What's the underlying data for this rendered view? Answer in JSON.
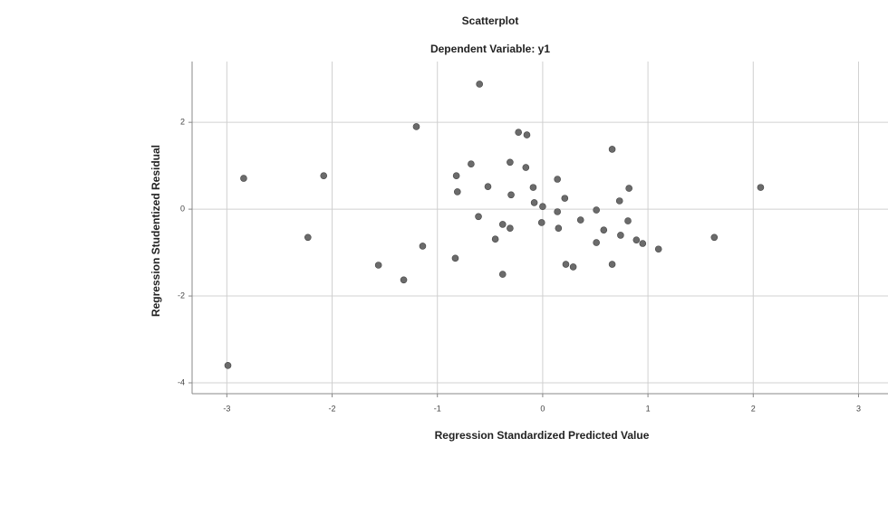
{
  "chart_data": {
    "type": "scatter",
    "title": "Scatterplot",
    "subtitle": "Dependent Variable: y1",
    "x_label": "Regression Standardized Predicted Value",
    "y_label": "Regression Studentized Residual",
    "color": "#6b6b6b",
    "grid": true,
    "xlim": [
      -3.33,
      3.28
    ],
    "ylim": [
      -4.25,
      3.4
    ],
    "xticks": [
      -3,
      -2,
      -1,
      0,
      1,
      2,
      3
    ],
    "yticks": [
      2,
      0,
      -2,
      -4
    ],
    "x": [
      -0.6,
      -1.2,
      -2.84,
      -2.08,
      -2.23,
      -1.56,
      -1.32,
      -1.14,
      -0.83,
      -0.82,
      -0.81,
      -0.68,
      -0.61,
      -0.52,
      -0.45,
      -0.38,
      -0.31,
      -0.38,
      -0.31,
      -0.3,
      -0.23,
      -0.15,
      -0.16,
      -0.09,
      -0.08,
      -0.01,
      0.0,
      0.14,
      0.14,
      0.15,
      0.21,
      0.22,
      0.29,
      0.36,
      0.51,
      0.51,
      0.58,
      0.66,
      0.66,
      0.73,
      0.74,
      0.81,
      0.82,
      0.89,
      0.95,
      1.1,
      1.63,
      2.07,
      -2.99
    ],
    "values": [
      2.88,
      1.9,
      0.71,
      0.77,
      -0.65,
      -1.29,
      -1.63,
      -0.85,
      -1.13,
      0.77,
      0.4,
      1.04,
      -0.17,
      0.52,
      -0.69,
      -0.35,
      -0.44,
      -1.5,
      1.08,
      0.33,
      1.77,
      1.71,
      0.96,
      0.5,
      0.15,
      -0.31,
      0.06,
      0.69,
      -0.06,
      -0.44,
      0.25,
      -1.27,
      -1.33,
      -0.25,
      -0.02,
      -0.77,
      -0.48,
      1.38,
      -1.27,
      0.19,
      -0.6,
      -0.27,
      0.48,
      -0.71,
      -0.79,
      -0.92,
      -0.65,
      0.5,
      -3.6
    ]
  }
}
